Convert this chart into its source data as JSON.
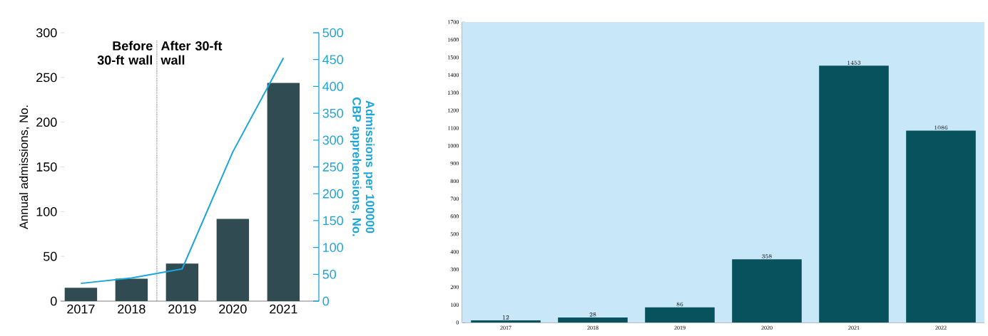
{
  "chart_data": [
    {
      "type": "bar",
      "categories": [
        "2017",
        "2018",
        "2019",
        "2020",
        "2021"
      ],
      "series": [
        {
          "color": "#314b52",
          "values": [
            15,
            25,
            42,
            92,
            244
          ]
        },
        {
          "type": "line",
          "axis": "y2",
          "color": "#1ba6db",
          "values": [
            33,
            43,
            60,
            278,
            453
          ]
        }
      ],
      "ylabel": "Annual admissions, No.",
      "y2label": "Admissions per 100000 CBP apprehensions, No.",
      "ylim": [
        0,
        300
      ],
      "yticks": [
        0,
        50,
        100,
        150,
        200,
        250,
        300
      ],
      "y2lim": [
        0,
        500
      ],
      "y2ticks": [
        0,
        50,
        100,
        150,
        200,
        250,
        300,
        350,
        400,
        450,
        500
      ],
      "annotations": [
        "Before 30-ft wall",
        "After 30-ft wall"
      ]
    },
    {
      "type": "bar",
      "categories": [
        "2017",
        "2018",
        "2019",
        "2020",
        "2021",
        "2022"
      ],
      "series": [
        {
          "color": "#08525e",
          "values": [
            12,
            28,
            86,
            358,
            1453,
            1086
          ]
        }
      ],
      "ylim": [
        0,
        1700
      ],
      "yticks": [
        0,
        100,
        200,
        300,
        400,
        500,
        600,
        700,
        800,
        900,
        1000,
        1100,
        1200,
        1300,
        1400,
        1500,
        1600,
        1700
      ],
      "data_labels": true
    }
  ]
}
